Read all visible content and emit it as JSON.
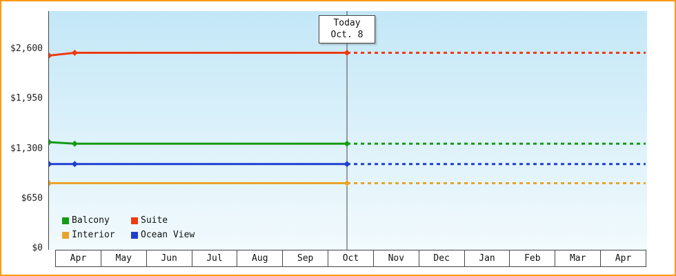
{
  "chart_data": {
    "type": "line",
    "title": "",
    "x_ticks": [
      "Apr",
      "May",
      "Jun",
      "Jul",
      "Aug",
      "Sep",
      "Oct",
      "Nov",
      "Dec",
      "Jan",
      "Feb",
      "Mar",
      "Apr"
    ],
    "y_ticks": [
      {
        "value": 0,
        "label": "$0"
      },
      {
        "value": 650,
        "label": "$650"
      },
      {
        "value": 1300,
        "label": "$1,300"
      },
      {
        "value": 1950,
        "label": "$1,950"
      },
      {
        "value": 2600,
        "label": "$2,600"
      }
    ],
    "ylim": [
      0,
      2600
    ],
    "grid": false,
    "legend_position": "bottom-left",
    "today": {
      "title": "Today",
      "date": "Oct. 8",
      "x_frac": 0.4983
    },
    "series": [
      {
        "name": "Balcony",
        "color": "#159a15",
        "points": [
          {
            "x": 0,
            "value": 1385
          },
          {
            "x": 0.043,
            "value": 1365
          }
        ],
        "current": 1365
      },
      {
        "name": "Suite",
        "color": "#ee3a10",
        "points": [
          {
            "x": 0,
            "value": 2515
          },
          {
            "x": 0.043,
            "value": 2550
          }
        ],
        "current": 2550
      },
      {
        "name": "Interior",
        "color": "#e9a42c",
        "points": [
          {
            "x": 0,
            "value": 850
          }
        ],
        "current": 850
      },
      {
        "name": "Ocean View",
        "color": "#1f3fd0",
        "points": [
          {
            "x": 0,
            "value": 1100
          },
          {
            "x": 0.043,
            "value": 1100
          }
        ],
        "current": 1100
      }
    ],
    "colors": {
      "frame_border": "#ff9913",
      "axis": "#444444"
    }
  }
}
